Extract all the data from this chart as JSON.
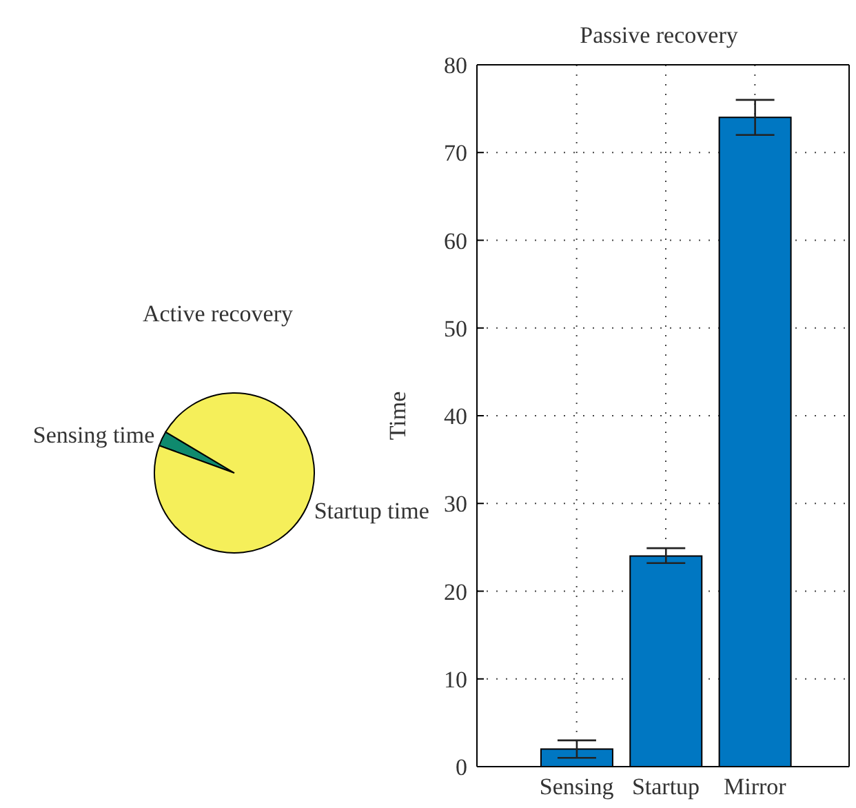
{
  "chart_data": [
    {
      "type": "pie",
      "title": "Active recovery",
      "categories": [
        "Sensing time",
        "Startup time"
      ],
      "values": [
        3,
        97
      ],
      "colors": [
        "#0f8a6e",
        "#f5ef5a"
      ],
      "legend": false
    },
    {
      "type": "bar",
      "title": "Passive recovery",
      "ylabel": "Time",
      "categories": [
        "Sensing",
        "Startup",
        "Mirror"
      ],
      "values": [
        2,
        24,
        74
      ],
      "errors": [
        [
          1,
          3
        ],
        [
          23.2,
          24.9
        ],
        [
          72,
          76
        ]
      ],
      "color": "#0077c2",
      "ylim": [
        0,
        80
      ],
      "yticks": [
        0,
        10,
        20,
        30,
        40,
        50,
        60,
        70,
        80
      ],
      "grid": true,
      "legend": false
    }
  ]
}
